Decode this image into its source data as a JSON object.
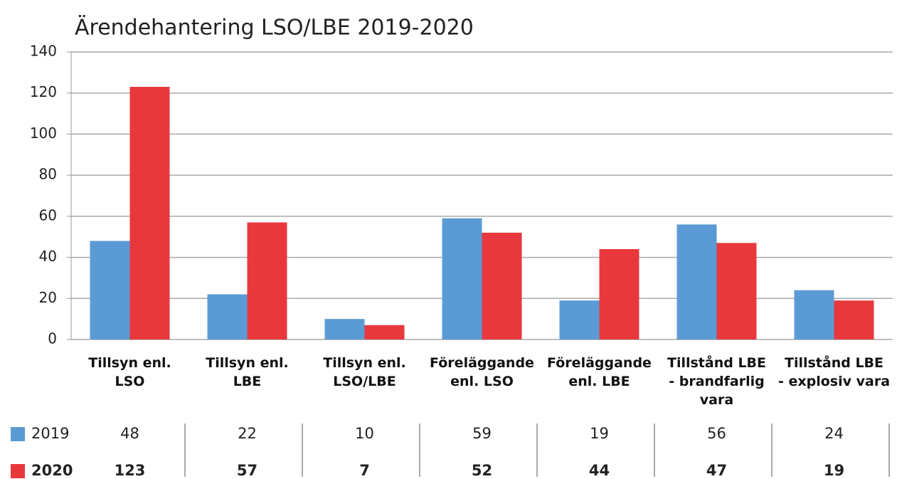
{
  "chart_data": {
    "type": "bar",
    "title": "Ärendehantering LSO/LBE 2019-2020",
    "categories": [
      "Tillsyn enl.\nLSO",
      "Tillsyn enl.\nLBE",
      "Tillsyn enl.\nLSO/LBE",
      "Föreläggande\nenl. LSO",
      "Föreläggande\nenl. LBE",
      "Tillstånd LBE\n- brandfarlig\nvara",
      "Tillstånd LBE\n- explosiv vara"
    ],
    "series": [
      {
        "name": "2019",
        "color": "#5b9bd5",
        "values": [
          48,
          22,
          10,
          59,
          19,
          56,
          24
        ]
      },
      {
        "name": "2020",
        "color": "#e8383d",
        "values": [
          123,
          57,
          7,
          52,
          44,
          47,
          19
        ]
      }
    ],
    "ylim": [
      0,
      140
    ],
    "yticks": [
      0,
      20,
      40,
      60,
      80,
      100,
      120,
      140
    ],
    "grid": true
  }
}
